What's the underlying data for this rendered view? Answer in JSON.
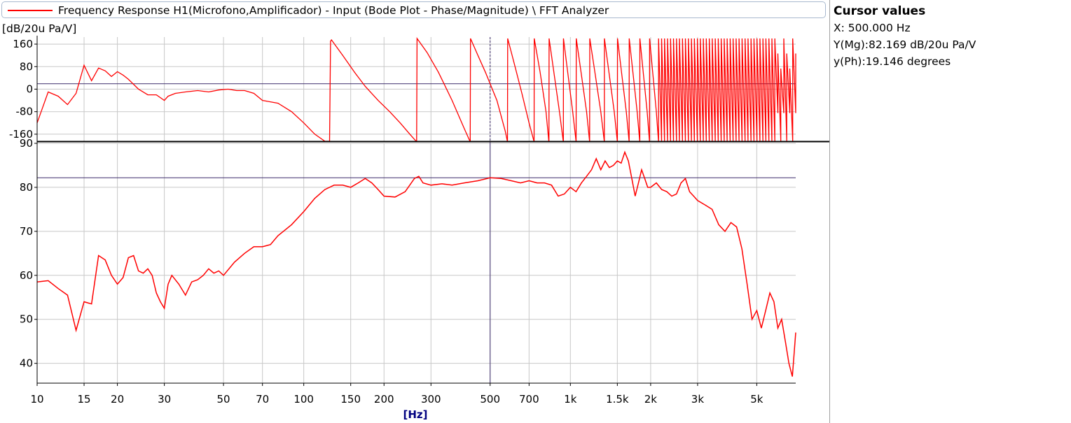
{
  "legend": {
    "text": "Frequency Response H1(Microfono,Amplificador) - Input (Bode Plot - Phase/Magnitude) \\ FFT Analyzer",
    "line_color": "#ff0000"
  },
  "unit_label": "[dB/20u Pa/V]",
  "cursor": {
    "title": "Cursor values",
    "x_text": "X: 500.000 Hz",
    "mag_text": "Y(Mg):82.169 dB/20u Pa/V",
    "phase_text": "y(Ph):19.146 degrees"
  },
  "colors": {
    "trace": "#ff0000",
    "grid": "#c8c8c8",
    "cursor": "#3b2a6b",
    "axis": "#000000",
    "xlabel": "#000080"
  },
  "chart_data": [
    {
      "type": "line",
      "name": "phase",
      "x_scale": "log",
      "xlim": [
        10,
        7000
      ],
      "ylim": [
        -185,
        185
      ],
      "yticks": [
        -160,
        -80,
        0,
        80,
        160
      ],
      "ytick_labels": [
        "-160",
        "-80",
        "0",
        "80",
        "160"
      ],
      "cursor": {
        "x": 500,
        "y": 19.146
      },
      "grid": true,
      "x": [
        10,
        11,
        12,
        13,
        14,
        15,
        16,
        17,
        18,
        19,
        20,
        21,
        22,
        24,
        26,
        28,
        30,
        31,
        33,
        36,
        40,
        44,
        48,
        52,
        56,
        60,
        65,
        70,
        80,
        90,
        100,
        110,
        120,
        125,
        126,
        127,
        140,
        155,
        170,
        190,
        210,
        230,
        250,
        264,
        265,
        266,
        290,
        320,
        360,
        400,
        420,
        421,
        422,
        450,
        480,
        500,
        530,
        570,
        580,
        581,
        582,
        620,
        660,
        700,
        730,
        731,
        732,
        770,
        810,
        830,
        831,
        832,
        870,
        910,
        940,
        941,
        942,
        980,
        1020,
        1050,
        1051,
        1052,
        1100,
        1150,
        1180,
        1181,
        1182,
        1240,
        1300,
        1340,
        1341,
        1342,
        1400,
        1460,
        1500,
        1501,
        1502,
        1560,
        1620,
        1660,
        1661,
        1662,
        1720,
        1780,
        1820,
        1821,
        1822,
        1880,
        1940,
        1980,
        1981,
        1982,
        2040,
        2100,
        2140,
        2141,
        2142
      ],
      "y": [
        -120,
        -10,
        -25,
        -55,
        -15,
        85,
        30,
        75,
        65,
        45,
        62,
        50,
        35,
        0,
        -20,
        -20,
        -40,
        -25,
        -15,
        -10,
        -5,
        -10,
        -3,
        0,
        -5,
        -5,
        -15,
        -40,
        -50,
        -80,
        -120,
        -160,
        -185,
        -185,
        170,
        175,
        120,
        60,
        10,
        -40,
        -80,
        -120,
        -160,
        -185,
        -185,
        180,
        130,
        60,
        -40,
        -140,
        -185,
        -185,
        180,
        120,
        60,
        19.146,
        -40,
        -150,
        -185,
        -185,
        180,
        80,
        -20,
        -120,
        -185,
        -185,
        180,
        60,
        -80,
        -185,
        -185,
        180,
        50,
        -80,
        -185,
        -185,
        180,
        50,
        -80,
        -185,
        -185,
        180,
        50,
        -80,
        -185,
        -185,
        180,
        50,
        -80,
        -185,
        -185,
        180,
        50,
        -80,
        -185,
        -185,
        180,
        50,
        -80,
        -185,
        -185,
        180,
        50,
        -80,
        -185,
        -185,
        180,
        50,
        -80,
        -185,
        -185,
        180,
        50,
        -80,
        -185,
        -185,
        180
      ],
      "wrap_dense_region": {
        "x_from": 2142,
        "x_to": 7000,
        "y_min": -185,
        "y_max": 180
      }
    },
    {
      "type": "line",
      "name": "magnitude",
      "x_scale": "log",
      "xlim": [
        10,
        7000
      ],
      "ylim": [
        35.5,
        90
      ],
      "yticks": [
        40,
        50,
        60,
        70,
        80,
        90
      ],
      "ytick_labels": [
        "40",
        "50",
        "60",
        "70",
        "80",
        "90"
      ],
      "xticks": [
        10,
        15,
        20,
        30,
        50,
        70,
        100,
        150,
        200,
        300,
        500,
        700,
        1000,
        1500,
        2000,
        3000,
        5000
      ],
      "xtick_labels": [
        "10",
        "15",
        "20",
        "30",
        "50",
        "70",
        "100",
        "150",
        "200",
        "300",
        "500",
        "700",
        "1k",
        "1.5k",
        "2k",
        "3k",
        "5k"
      ],
      "xlabel": "[Hz]",
      "cursor": {
        "x": 500,
        "y": 82.169
      },
      "grid": true,
      "x": [
        10,
        11,
        12,
        13,
        14,
        15,
        16,
        17,
        18,
        19,
        20,
        21,
        22,
        23,
        24,
        25,
        26,
        27,
        28,
        29,
        30,
        31,
        32,
        34,
        36,
        38,
        40,
        42,
        44,
        46,
        48,
        50,
        55,
        60,
        65,
        70,
        75,
        80,
        90,
        100,
        110,
        120,
        130,
        140,
        150,
        160,
        170,
        180,
        190,
        200,
        220,
        240,
        260,
        270,
        280,
        300,
        330,
        360,
        400,
        450,
        500,
        550,
        600,
        650,
        700,
        750,
        800,
        850,
        900,
        950,
        1000,
        1050,
        1100,
        1150,
        1200,
        1250,
        1300,
        1350,
        1400,
        1450,
        1500,
        1550,
        1600,
        1650,
        1700,
        1750,
        1800,
        1850,
        1900,
        1950,
        2000,
        2100,
        2200,
        2300,
        2400,
        2500,
        2600,
        2700,
        2800,
        2900,
        3000,
        3200,
        3400,
        3600,
        3800,
        4000,
        4200,
        4400,
        4600,
        4800,
        5000,
        5200,
        5400,
        5600,
        5800,
        6000,
        6200,
        6400,
        6600,
        6800,
        7000
      ],
      "y": [
        58.5,
        58.8,
        57,
        55.5,
        47.5,
        54,
        53.5,
        64.5,
        63.5,
        60,
        58,
        59.5,
        64,
        64.5,
        61,
        60.5,
        61.5,
        60,
        56,
        54,
        52.5,
        58,
        60,
        58,
        55.5,
        58.5,
        59,
        60,
        61.5,
        60.5,
        61,
        60,
        63,
        65,
        66.5,
        66.5,
        67,
        69,
        71.5,
        74.5,
        77.5,
        79.5,
        80.5,
        80.5,
        80,
        81,
        82,
        81,
        79.5,
        78,
        77.8,
        79,
        82,
        82.5,
        81,
        80.5,
        80.8,
        80.5,
        81,
        81.5,
        82.169,
        82,
        81.5,
        81,
        81.5,
        81,
        81,
        80.5,
        78,
        78.5,
        80,
        79,
        81,
        82.5,
        84,
        86.5,
        84,
        86,
        84.5,
        85,
        86,
        85.5,
        88,
        86,
        82,
        78,
        81,
        84,
        82,
        80,
        80,
        81,
        79.5,
        79,
        78,
        78.5,
        81,
        82,
        79,
        78,
        77,
        76,
        75,
        71.5,
        70,
        72,
        71,
        66,
        58,
        50,
        52,
        48,
        52,
        56,
        54,
        48,
        50,
        45,
        40,
        37,
        47
      ]
    }
  ]
}
